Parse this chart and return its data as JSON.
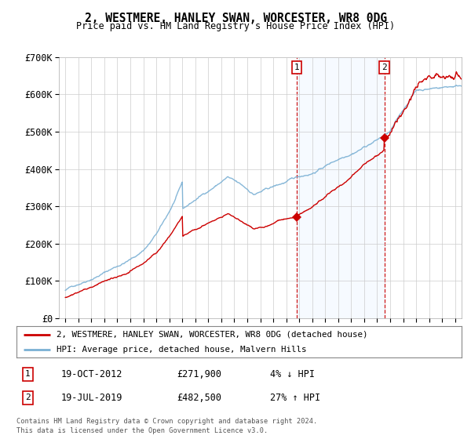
{
  "title": "2, WESTMERE, HANLEY SWAN, WORCESTER, WR8 0DG",
  "subtitle": "Price paid vs. HM Land Registry's House Price Index (HPI)",
  "ylabel_ticks": [
    "£0",
    "£100K",
    "£200K",
    "£300K",
    "£400K",
    "£500K",
    "£600K",
    "£700K"
  ],
  "ytick_vals": [
    0,
    100000,
    200000,
    300000,
    400000,
    500000,
    600000,
    700000
  ],
  "ylim": [
    0,
    700000
  ],
  "xlim_start": 1994.5,
  "xlim_end": 2025.5,
  "sale1_year": 2012.8,
  "sale1_price": 271900,
  "sale1_label": "1",
  "sale1_date": "19-OCT-2012",
  "sale1_pct": "4% ↓ HPI",
  "sale2_year": 2019.55,
  "sale2_price": 482500,
  "sale2_label": "2",
  "sale2_date": "19-JUL-2019",
  "sale2_pct": "27% ↑ HPI",
  "legend1": "2, WESTMERE, HANLEY SWAN, WORCESTER, WR8 0DG (detached house)",
  "legend2": "HPI: Average price, detached house, Malvern Hills",
  "footer1": "Contains HM Land Registry data © Crown copyright and database right 2024.",
  "footer2": "This data is licensed under the Open Government Licence v3.0.",
  "hpi_color": "#7ab0d4",
  "price_color": "#cc0000",
  "shade_color": "#ddeeff",
  "vline_color": "#cc0000",
  "background_color": "#ffffff",
  "grid_color": "#cccccc",
  "x_ticks": [
    1995,
    1996,
    1997,
    1998,
    1999,
    2000,
    2001,
    2002,
    2003,
    2004,
    2005,
    2006,
    2007,
    2008,
    2009,
    2010,
    2011,
    2012,
    2013,
    2014,
    2015,
    2016,
    2017,
    2018,
    2019,
    2020,
    2021,
    2022,
    2023,
    2024,
    2025
  ]
}
